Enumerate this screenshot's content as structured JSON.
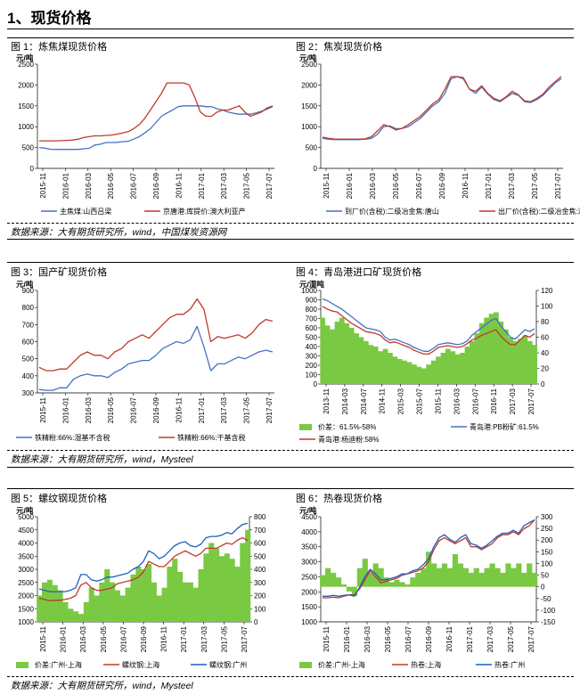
{
  "page_title": "1、现货价格",
  "source_1": "数据来源：大有期货研究所，wind，中国煤炭资源网",
  "source_2": "数据来源：大有期货研究所，wind，Mysteel",
  "source_3": "数据来源：大有期货研究所，wind，Mysteel",
  "chart_data": [
    {
      "id": "c1",
      "type": "line",
      "title": "图 1：炼焦煤现货价格",
      "unit": "元/吨",
      "ylim": [
        0,
        2500
      ],
      "yticks": [
        0,
        500,
        1000,
        1500,
        2000,
        2500
      ],
      "xticks": [
        "2015-11",
        "2016-01",
        "2016-03",
        "2016-05",
        "2016-07",
        "2016-09",
        "2016-11",
        "2017-01",
        "2017-03",
        "2017-05",
        "2017-07"
      ],
      "series": [
        {
          "name": "主焦煤:山西吕梁",
          "color": "#4472c4",
          "axis": "left",
          "values": [
            500,
            485,
            460,
            455,
            455,
            455,
            455,
            455,
            470,
            480,
            560,
            580,
            620,
            620,
            625,
            640,
            650,
            700,
            760,
            850,
            950,
            1100,
            1250,
            1330,
            1400,
            1480,
            1500,
            1500,
            1500,
            1500,
            1480,
            1480,
            1430,
            1400,
            1350,
            1320,
            1300,
            1300,
            1300,
            1330,
            1370,
            1420,
            1480
          ]
        },
        {
          "name": "京唐港:库提价:澳大利亚产",
          "color": "#c0392b",
          "axis": "left",
          "values": [
            660,
            660,
            660,
            660,
            665,
            670,
            680,
            700,
            740,
            760,
            780,
            780,
            790,
            800,
            820,
            850,
            880,
            950,
            1050,
            1200,
            1400,
            1600,
            1800,
            2050,
            2050,
            2050,
            2050,
            2000,
            1700,
            1350,
            1250,
            1250,
            1350,
            1400,
            1400,
            1450,
            1500,
            1350,
            1250,
            1300,
            1350,
            1450,
            1500
          ]
        }
      ]
    },
    {
      "id": "c2",
      "type": "line",
      "title": "图 2：焦炭现货价格",
      "unit": "元/吨",
      "ylim": [
        0,
        2500
      ],
      "yticks": [
        0,
        500,
        1000,
        1500,
        2000,
        2500
      ],
      "xticks": [
        "2015-11",
        "2016-01",
        "2016-03",
        "2016-05",
        "2016-07",
        "2016-09",
        "2016-11",
        "2017-01",
        "2017-03",
        "2017-05",
        "2017-07"
      ],
      "series": [
        {
          "name": "到厂价(含税):二级冶金焦:唐山",
          "color": "#4472c4",
          "axis": "left",
          "values": [
            720,
            700,
            690,
            690,
            690,
            690,
            690,
            700,
            720,
            820,
            1000,
            1020,
            950,
            960,
            1000,
            1100,
            1200,
            1350,
            1500,
            1600,
            1800,
            2150,
            2200,
            2180,
            1900,
            1800,
            1950,
            1780,
            1650,
            1600,
            1700,
            1800,
            1750,
            1600,
            1580,
            1650,
            1750,
            1900,
            2050,
            2150
          ]
        },
        {
          "name": "出厂价(含税):二级冶金焦:潍坊",
          "color": "#c0392b",
          "axis": "left",
          "values": [
            750,
            720,
            700,
            700,
            700,
            700,
            700,
            710,
            760,
            900,
            1050,
            1000,
            920,
            960,
            1050,
            1150,
            1250,
            1400,
            1550,
            1650,
            1900,
            2200,
            2200,
            2150,
            1900,
            1850,
            1980,
            1800,
            1680,
            1620,
            1720,
            1850,
            1760,
            1620,
            1600,
            1680,
            1780,
            1950,
            2080,
            2200
          ]
        }
      ]
    },
    {
      "id": "c3",
      "type": "line",
      "title": "图 3：国产矿现货价格",
      "unit": "元/吨",
      "ylim": [
        300,
        900
      ],
      "yticks": [
        300,
        400,
        500,
        600,
        700,
        800,
        900
      ],
      "xticks": [
        "2015-11",
        "2016-01",
        "2016-03",
        "2016-05",
        "2016-07",
        "2016-09",
        "2016-11",
        "2017-01",
        "2017-03",
        "2017-05",
        "2017-07"
      ],
      "series": [
        {
          "name": "铁精粉:66%:湿基不含税",
          "color": "#4472c4",
          "axis": "left",
          "values": [
            320,
            315,
            315,
            330,
            330,
            380,
            400,
            410,
            400,
            400,
            390,
            420,
            440,
            470,
            480,
            490,
            490,
            520,
            560,
            580,
            600,
            590,
            610,
            690,
            570,
            430,
            470,
            470,
            490,
            510,
            500,
            520,
            540,
            550,
            540
          ]
        },
        {
          "name": "铁精粉:66%:干基含税",
          "color": "#c0392b",
          "axis": "left",
          "values": [
            450,
            430,
            430,
            440,
            440,
            480,
            520,
            540,
            520,
            520,
            500,
            540,
            560,
            600,
            620,
            640,
            620,
            660,
            700,
            740,
            760,
            760,
            790,
            850,
            790,
            600,
            630,
            620,
            630,
            640,
            620,
            650,
            700,
            730,
            720
          ]
        }
      ]
    },
    {
      "id": "c4",
      "type": "line",
      "title": "图 4：青岛港进口矿现货价格",
      "unit": "元/湿吨",
      "ylim": [
        0,
        1000
      ],
      "yticks": [
        0,
        100,
        200,
        300,
        400,
        500,
        600,
        700,
        800,
        900,
        1000
      ],
      "y2lim": [
        0,
        120
      ],
      "y2ticks": [
        0,
        20,
        40,
        60,
        80,
        100,
        120
      ],
      "xticks": [
        "2013-11",
        "2014-03",
        "2014-07",
        "2014-11",
        "2015-03",
        "2015-07",
        "2015-11",
        "2016-03",
        "2016-07",
        "2016-11",
        "2017-03",
        "2017-07"
      ],
      "series": [
        {
          "name": "价差：61.5%-58%",
          "color": "#7ac943",
          "axis": "right",
          "style": "area",
          "values": [
            85,
            75,
            70,
            80,
            85,
            78,
            72,
            65,
            60,
            55,
            50,
            48,
            42,
            45,
            40,
            35,
            32,
            30,
            28,
            25,
            22,
            20,
            25,
            30,
            35,
            40,
            45,
            42,
            38,
            40,
            48,
            55,
            65,
            78,
            85,
            90,
            92,
            80,
            70,
            60,
            55,
            58,
            62,
            55,
            50
          ]
        },
        {
          "name": "青岛港:PB粉矿:61.5%",
          "color": "#4472c4",
          "axis": "left",
          "values": [
            910,
            890,
            860,
            830,
            800,
            760,
            720,
            680,
            640,
            600,
            590,
            580,
            560,
            500,
            470,
            480,
            460,
            440,
            420,
            390,
            370,
            350,
            350,
            380,
            420,
            430,
            440,
            430,
            420,
            430,
            460,
            520,
            560,
            600,
            640,
            680,
            700,
            620,
            560,
            500,
            480,
            530,
            580,
            560,
            590
          ]
        },
        {
          "name": "青岛港:杨迪粉:58%",
          "color": "#c0392b",
          "axis": "left",
          "values": [
            830,
            800,
            780,
            770,
            730,
            690,
            650,
            620,
            590,
            560,
            550,
            540,
            520,
            470,
            440,
            450,
            430,
            410,
            390,
            360,
            340,
            320,
            320,
            350,
            390,
            400,
            410,
            400,
            390,
            400,
            430,
            470,
            490,
            520,
            540,
            560,
            580,
            510,
            460,
            420,
            420,
            470,
            520,
            500,
            540
          ]
        }
      ]
    },
    {
      "id": "c5",
      "type": "line",
      "title": "图 5：螺纹钢现货价格",
      "unit": "元/吨",
      "ylim": [
        1000,
        5000
      ],
      "yticks": [
        1000,
        1500,
        2000,
        2500,
        3000,
        3500,
        4000,
        4500,
        5000
      ],
      "y2lim": [
        0,
        800
      ],
      "y2ticks": [
        0,
        100,
        200,
        300,
        400,
        500,
        600,
        700,
        800
      ],
      "xticks": [
        "2015-11",
        "2016-01",
        "2016-03",
        "2016-05",
        "2016-07",
        "2016-09",
        "2016-11",
        "2017-01",
        "2017-03",
        "2017-05",
        "2017-07"
      ],
      "series": [
        {
          "name": "价差:广州-上海",
          "color": "#7ac943",
          "axis": "right",
          "style": "area",
          "values": [
            200,
            300,
            320,
            280,
            240,
            150,
            100,
            80,
            60,
            150,
            260,
            200,
            300,
            400,
            300,
            240,
            200,
            260,
            360,
            420,
            400,
            440,
            300,
            200,
            260,
            420,
            480,
            380,
            300,
            300,
            260,
            400,
            520,
            600,
            560,
            500,
            520,
            480,
            420,
            600,
            700
          ]
        },
        {
          "name": "螺纹钢:上海",
          "color": "#c0392b",
          "axis": "left",
          "values": [
            1900,
            1850,
            1800,
            1820,
            1820,
            1850,
            1900,
            2000,
            2400,
            2500,
            2300,
            2200,
            2200,
            2250,
            2300,
            2450,
            2500,
            2550,
            2600,
            2700,
            2900,
            3300,
            3200,
            3100,
            3100,
            3300,
            3500,
            3600,
            3700,
            3600,
            3500,
            3600,
            3800,
            3800,
            3800,
            3900,
            4000,
            3950,
            4100,
            4200,
            4100
          ]
        },
        {
          "name": "螺纹钢:广州",
          "color": "#1f5fbf",
          "axis": "left",
          "values": [
            2250,
            2200,
            2150,
            2150,
            2150,
            2150,
            2200,
            2300,
            2800,
            2800,
            2600,
            2550,
            2600,
            2700,
            2700,
            2750,
            2800,
            2850,
            3000,
            3100,
            3300,
            3700,
            3600,
            3400,
            3500,
            3700,
            3900,
            4000,
            4050,
            3900,
            3850,
            3950,
            4200,
            4250,
            4250,
            4300,
            4400,
            4350,
            4550,
            4700,
            4750
          ]
        }
      ]
    },
    {
      "id": "c6",
      "type": "line",
      "title": "图 6：热卷现货价格",
      "unit": "元/吨",
      "ylim": [
        1000,
        4500
      ],
      "yticks": [
        1000,
        1500,
        2000,
        2500,
        3000,
        3500,
        4000,
        4500
      ],
      "y2lim": [
        -150,
        300
      ],
      "y2ticks": [
        -150,
        -100,
        -50,
        0,
        50,
        100,
        150,
        200,
        250,
        300
      ],
      "xticks": [
        "2015-11",
        "2016-01",
        "2016-03",
        "2016-05",
        "2016-07",
        "2016-09",
        "2016-11",
        "2017-01",
        "2017-03",
        "2017-05",
        "2017-07"
      ],
      "series": [
        {
          "name": "价差:广州-上海",
          "color": "#7ac943",
          "axis": "right",
          "style": "area",
          "values": [
            50,
            80,
            60,
            40,
            10,
            -20,
            -40,
            80,
            120,
            60,
            100,
            80,
            40,
            20,
            30,
            20,
            10,
            40,
            60,
            80,
            150,
            100,
            80,
            100,
            80,
            140,
            100,
            80,
            60,
            80,
            60,
            80,
            100,
            80,
            60,
            100,
            80,
            100,
            60,
            100,
            60
          ]
        },
        {
          "name": "热卷:上海",
          "color": "#c0392b",
          "axis": "left",
          "values": [
            1800,
            1800,
            1820,
            1800,
            1850,
            1900,
            1900,
            2100,
            2400,
            2700,
            2500,
            2300,
            2350,
            2400,
            2450,
            2550,
            2600,
            2650,
            2700,
            2800,
            3000,
            3400,
            3700,
            3800,
            3700,
            3600,
            3700,
            3800,
            3500,
            3500,
            3400,
            3500,
            3600,
            3800,
            3900,
            3900,
            4000,
            3900,
            4100,
            4200,
            4400
          ]
        },
        {
          "name": "热卷:广州",
          "color": "#1f5fbf",
          "axis": "left",
          "values": [
            1850,
            1850,
            1880,
            1850,
            1880,
            1900,
            1850,
            2150,
            2500,
            2750,
            2600,
            2400,
            2400,
            2450,
            2500,
            2600,
            2600,
            2700,
            2750,
            2900,
            3100,
            3500,
            3800,
            3900,
            3750,
            3650,
            3800,
            3900,
            3600,
            3550,
            3450,
            3550,
            3700,
            3850,
            3950,
            3950,
            4050,
            3950,
            4200,
            4300,
            4400
          ]
        }
      ]
    }
  ]
}
